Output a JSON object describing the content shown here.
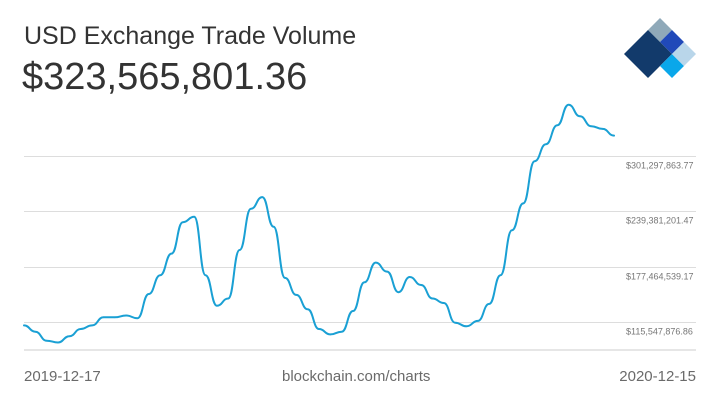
{
  "header": {
    "title": "USD Exchange Trade Volume",
    "value": "$323,565,801.36"
  },
  "footer": {
    "start_date": "2019-12-17",
    "source": "blockchain.com/charts",
    "end_date": "2020-12-15"
  },
  "logo": {
    "name": "blockchain-logo",
    "colors": [
      "#8fa9b9",
      "#2049b9",
      "#123a6b",
      "#0aa7ea",
      "#b9d6ea"
    ]
  },
  "chart_data": {
    "type": "line",
    "title": "USD Exchange Trade Volume",
    "xlabel": "",
    "ylabel": "",
    "x_range": [
      "2019-12-17",
      "2020-12-15"
    ],
    "ylim": [
      84589583,
      363214526
    ],
    "grid": true,
    "y_ticks": [
      {
        "value": 115547876.86,
        "label": "$115,547,876.86"
      },
      {
        "value": 177464539.17,
        "label": "$177,464,539.17"
      },
      {
        "value": 239381201.47,
        "label": "$239,381,201.47"
      },
      {
        "value": 301297863.77,
        "label": "$301,297,863.77"
      }
    ],
    "line_color": "#1aa0d4",
    "series": [
      {
        "x": [
          "2019-12-17",
          "2019-12-24",
          "2019-12-31",
          "2020-01-07",
          "2020-01-14",
          "2020-01-21",
          "2020-01-28",
          "2020-02-04",
          "2020-02-11",
          "2020-02-18",
          "2020-02-25",
          "2020-03-03",
          "2020-03-10",
          "2020-03-17",
          "2020-03-24",
          "2020-03-31",
          "2020-04-07",
          "2020-04-14",
          "2020-04-21",
          "2020-04-28",
          "2020-05-05",
          "2020-05-12",
          "2020-05-19",
          "2020-05-26",
          "2020-06-02",
          "2020-06-09",
          "2020-06-16",
          "2020-06-23",
          "2020-06-30",
          "2020-07-07",
          "2020-07-14",
          "2020-07-21",
          "2020-07-28",
          "2020-08-04",
          "2020-08-11",
          "2020-08-18",
          "2020-08-25",
          "2020-09-01",
          "2020-09-08",
          "2020-09-15",
          "2020-09-22",
          "2020-09-29",
          "2020-10-06",
          "2020-10-13",
          "2020-10-20",
          "2020-10-27",
          "2020-11-03",
          "2020-11-10",
          "2020-11-17",
          "2020-11-24",
          "2020-12-01",
          "2020-12-08",
          "2020-12-15"
        ],
        "values": [
          112000000,
          105000000,
          95000000,
          93000000,
          100000000,
          108000000,
          112000000,
          121000000,
          121000000,
          123000000,
          120000000,
          147000000,
          168000000,
          192000000,
          227000000,
          233000000,
          168000000,
          134000000,
          142000000,
          196000000,
          242000000,
          255000000,
          222000000,
          165000000,
          146000000,
          130000000,
          108000000,
          102000000,
          105000000,
          128000000,
          160000000,
          182000000,
          172000000,
          149000000,
          166000000,
          157000000,
          142000000,
          137000000,
          115000000,
          111000000,
          117000000,
          136000000,
          168000000,
          218000000,
          248000000,
          295000000,
          314000000,
          335000000,
          358000000,
          345000000,
          334000000,
          331000000,
          323565801
        ]
      }
    ]
  }
}
